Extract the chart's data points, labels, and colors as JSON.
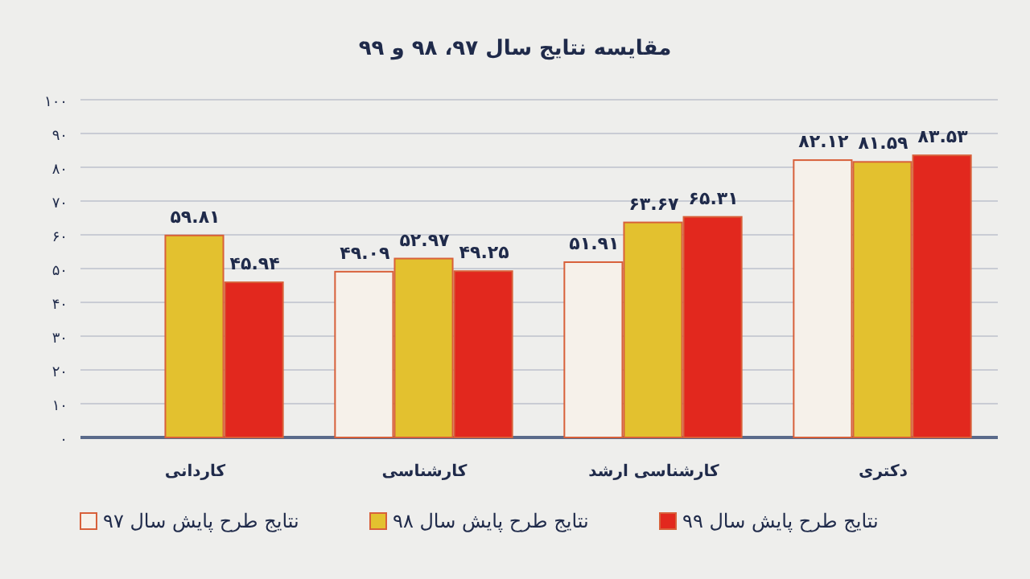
{
  "chart_data": {
    "type": "bar",
    "title": "مقایسه نتایج سال ۹۷، ۹۸ و ۹۹",
    "categories": [
      "کاردانی",
      "کارشناسی",
      "کارشناسی ارشد",
      "دکتری"
    ],
    "series": [
      {
        "name": "نتایج طرح پایش سال ۹۷",
        "color": "#f6f1ea",
        "values": [
          null,
          49.09,
          51.91,
          82.12
        ],
        "value_labels": [
          null,
          "۴۹.۰۹",
          "۵۱.۹۱",
          "۸۲.۱۲"
        ]
      },
      {
        "name": "نتایج طرح پایش سال ۹۸",
        "color": "#e3c12f",
        "values": [
          59.81,
          52.97,
          63.67,
          81.59
        ],
        "value_labels": [
          "۵۹.۸۱",
          "۵۲.۹۷",
          "۶۳.۶۷",
          "۸۱.۵۹"
        ]
      },
      {
        "name": "نتایج طرح پایش سال ۹۹",
        "color": "#e2281e",
        "values": [
          45.94,
          49.25,
          65.31,
          83.53
        ],
        "value_labels": [
          "۴۵.۹۴",
          "۴۹.۲۵",
          "۶۵.۳۱",
          "۸۳.۵۳"
        ]
      }
    ],
    "ylim": [
      0,
      100
    ],
    "yticks": [
      {
        "value": 0,
        "label": "۰"
      },
      {
        "value": 10,
        "label": "۱۰"
      },
      {
        "value": 20,
        "label": "۲۰"
      },
      {
        "value": 30,
        "label": "۳۰"
      },
      {
        "value": 40,
        "label": "۴۰"
      },
      {
        "value": 50,
        "label": "۵۰"
      },
      {
        "value": 60,
        "label": "۶۰"
      },
      {
        "value": 70,
        "label": "۷۰"
      },
      {
        "value": 80,
        "label": "۸۰"
      },
      {
        "value": 90,
        "label": "۹۰"
      },
      {
        "value": 100,
        "label": "۱۰۰"
      }
    ],
    "grid": "y",
    "legend": "bottom"
  }
}
